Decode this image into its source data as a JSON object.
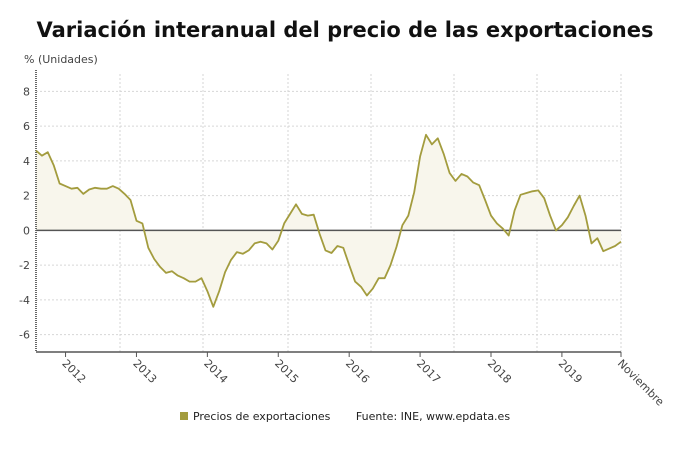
{
  "chart_data": {
    "type": "area",
    "title": "Variación interanual del precio de las exportaciones",
    "ylabel": "% (Unidades)",
    "xlabel": "",
    "ylim": [
      -7,
      9
    ],
    "yticks": [
      8,
      6,
      4,
      2,
      0,
      -2,
      -4,
      -6
    ],
    "xtick_labels": [
      "2012",
      "2013",
      "2014",
      "2015",
      "2016",
      "2017",
      "2018",
      "2019",
      "Noviembre"
    ],
    "grid": true,
    "legend_position": "bottom",
    "source": "Fuente: INE, www.epdata.es",
    "colors": {
      "line": "#a39c3e",
      "fill": "#f8f6ec",
      "zero_line": "#555555"
    },
    "x": [
      "2011-08",
      "2011-09",
      "2011-10",
      "2011-11",
      "2011-12",
      "2012-01",
      "2012-02",
      "2012-03",
      "2012-04",
      "2012-05",
      "2012-06",
      "2012-07",
      "2012-08",
      "2012-09",
      "2012-10",
      "2012-11",
      "2012-12",
      "2013-01",
      "2013-02",
      "2013-03",
      "2013-04",
      "2013-05",
      "2013-06",
      "2013-07",
      "2013-08",
      "2013-09",
      "2013-10",
      "2013-11",
      "2013-12",
      "2014-01",
      "2014-02",
      "2014-03",
      "2014-04",
      "2014-05",
      "2014-06",
      "2014-07",
      "2014-08",
      "2014-09",
      "2014-10",
      "2014-11",
      "2014-12",
      "2015-01",
      "2015-02",
      "2015-03",
      "2015-04",
      "2015-05",
      "2015-06",
      "2015-07",
      "2015-08",
      "2015-09",
      "2015-10",
      "2015-11",
      "2015-12",
      "2016-01",
      "2016-02",
      "2016-03",
      "2016-04",
      "2016-05",
      "2016-06",
      "2016-07",
      "2016-08",
      "2016-09",
      "2016-10",
      "2016-11",
      "2016-12",
      "2017-01",
      "2017-02",
      "2017-03",
      "2017-04",
      "2017-05",
      "2017-06",
      "2017-07",
      "2017-08",
      "2017-09",
      "2017-10",
      "2017-11",
      "2017-12",
      "2018-01",
      "2018-02",
      "2018-03",
      "2018-04",
      "2018-05",
      "2018-06",
      "2018-07",
      "2018-08",
      "2018-09",
      "2018-10",
      "2018-11",
      "2018-12",
      "2019-01",
      "2019-02",
      "2019-03",
      "2019-04",
      "2019-05",
      "2019-06",
      "2019-07",
      "2019-08",
      "2019-09",
      "2019-10",
      "2019-11"
    ],
    "series": [
      {
        "name": "Precios de exportaciones",
        "values": [
          4.6,
          4.3,
          4.5,
          3.75,
          2.7,
          2.55,
          2.4,
          2.45,
          2.1,
          2.35,
          2.45,
          2.4,
          2.4,
          2.55,
          2.4,
          2.1,
          1.75,
          0.55,
          0.4,
          -1.0,
          -1.65,
          -2.1,
          -2.45,
          -2.35,
          -2.6,
          -2.75,
          -2.95,
          -2.95,
          -2.75,
          -3.5,
          -4.4,
          -3.5,
          -2.4,
          -1.7,
          -1.25,
          -1.35,
          -1.15,
          -0.75,
          -0.65,
          -0.75,
          -1.1,
          -0.6,
          0.4,
          0.95,
          1.5,
          0.95,
          0.85,
          0.9,
          -0.2,
          -1.15,
          -1.3,
          -0.9,
          -1.0,
          -2.0,
          -2.95,
          -3.25,
          -3.75,
          -3.35,
          -2.75,
          -2.75,
          -2.0,
          -0.95,
          0.3,
          0.85,
          2.2,
          4.25,
          5.5,
          4.95,
          5.3,
          4.4,
          3.3,
          2.85,
          3.25,
          3.1,
          2.75,
          2.6,
          1.75,
          0.85,
          0.4,
          0.1,
          -0.3,
          1.15,
          2.05,
          2.15,
          2.25,
          2.3,
          1.85,
          0.85,
          0.0,
          0.3,
          0.75,
          1.4,
          2.0,
          0.85,
          -0.75,
          -0.45,
          -1.2,
          -1.05,
          -0.9,
          -0.65
        ]
      }
    ]
  }
}
